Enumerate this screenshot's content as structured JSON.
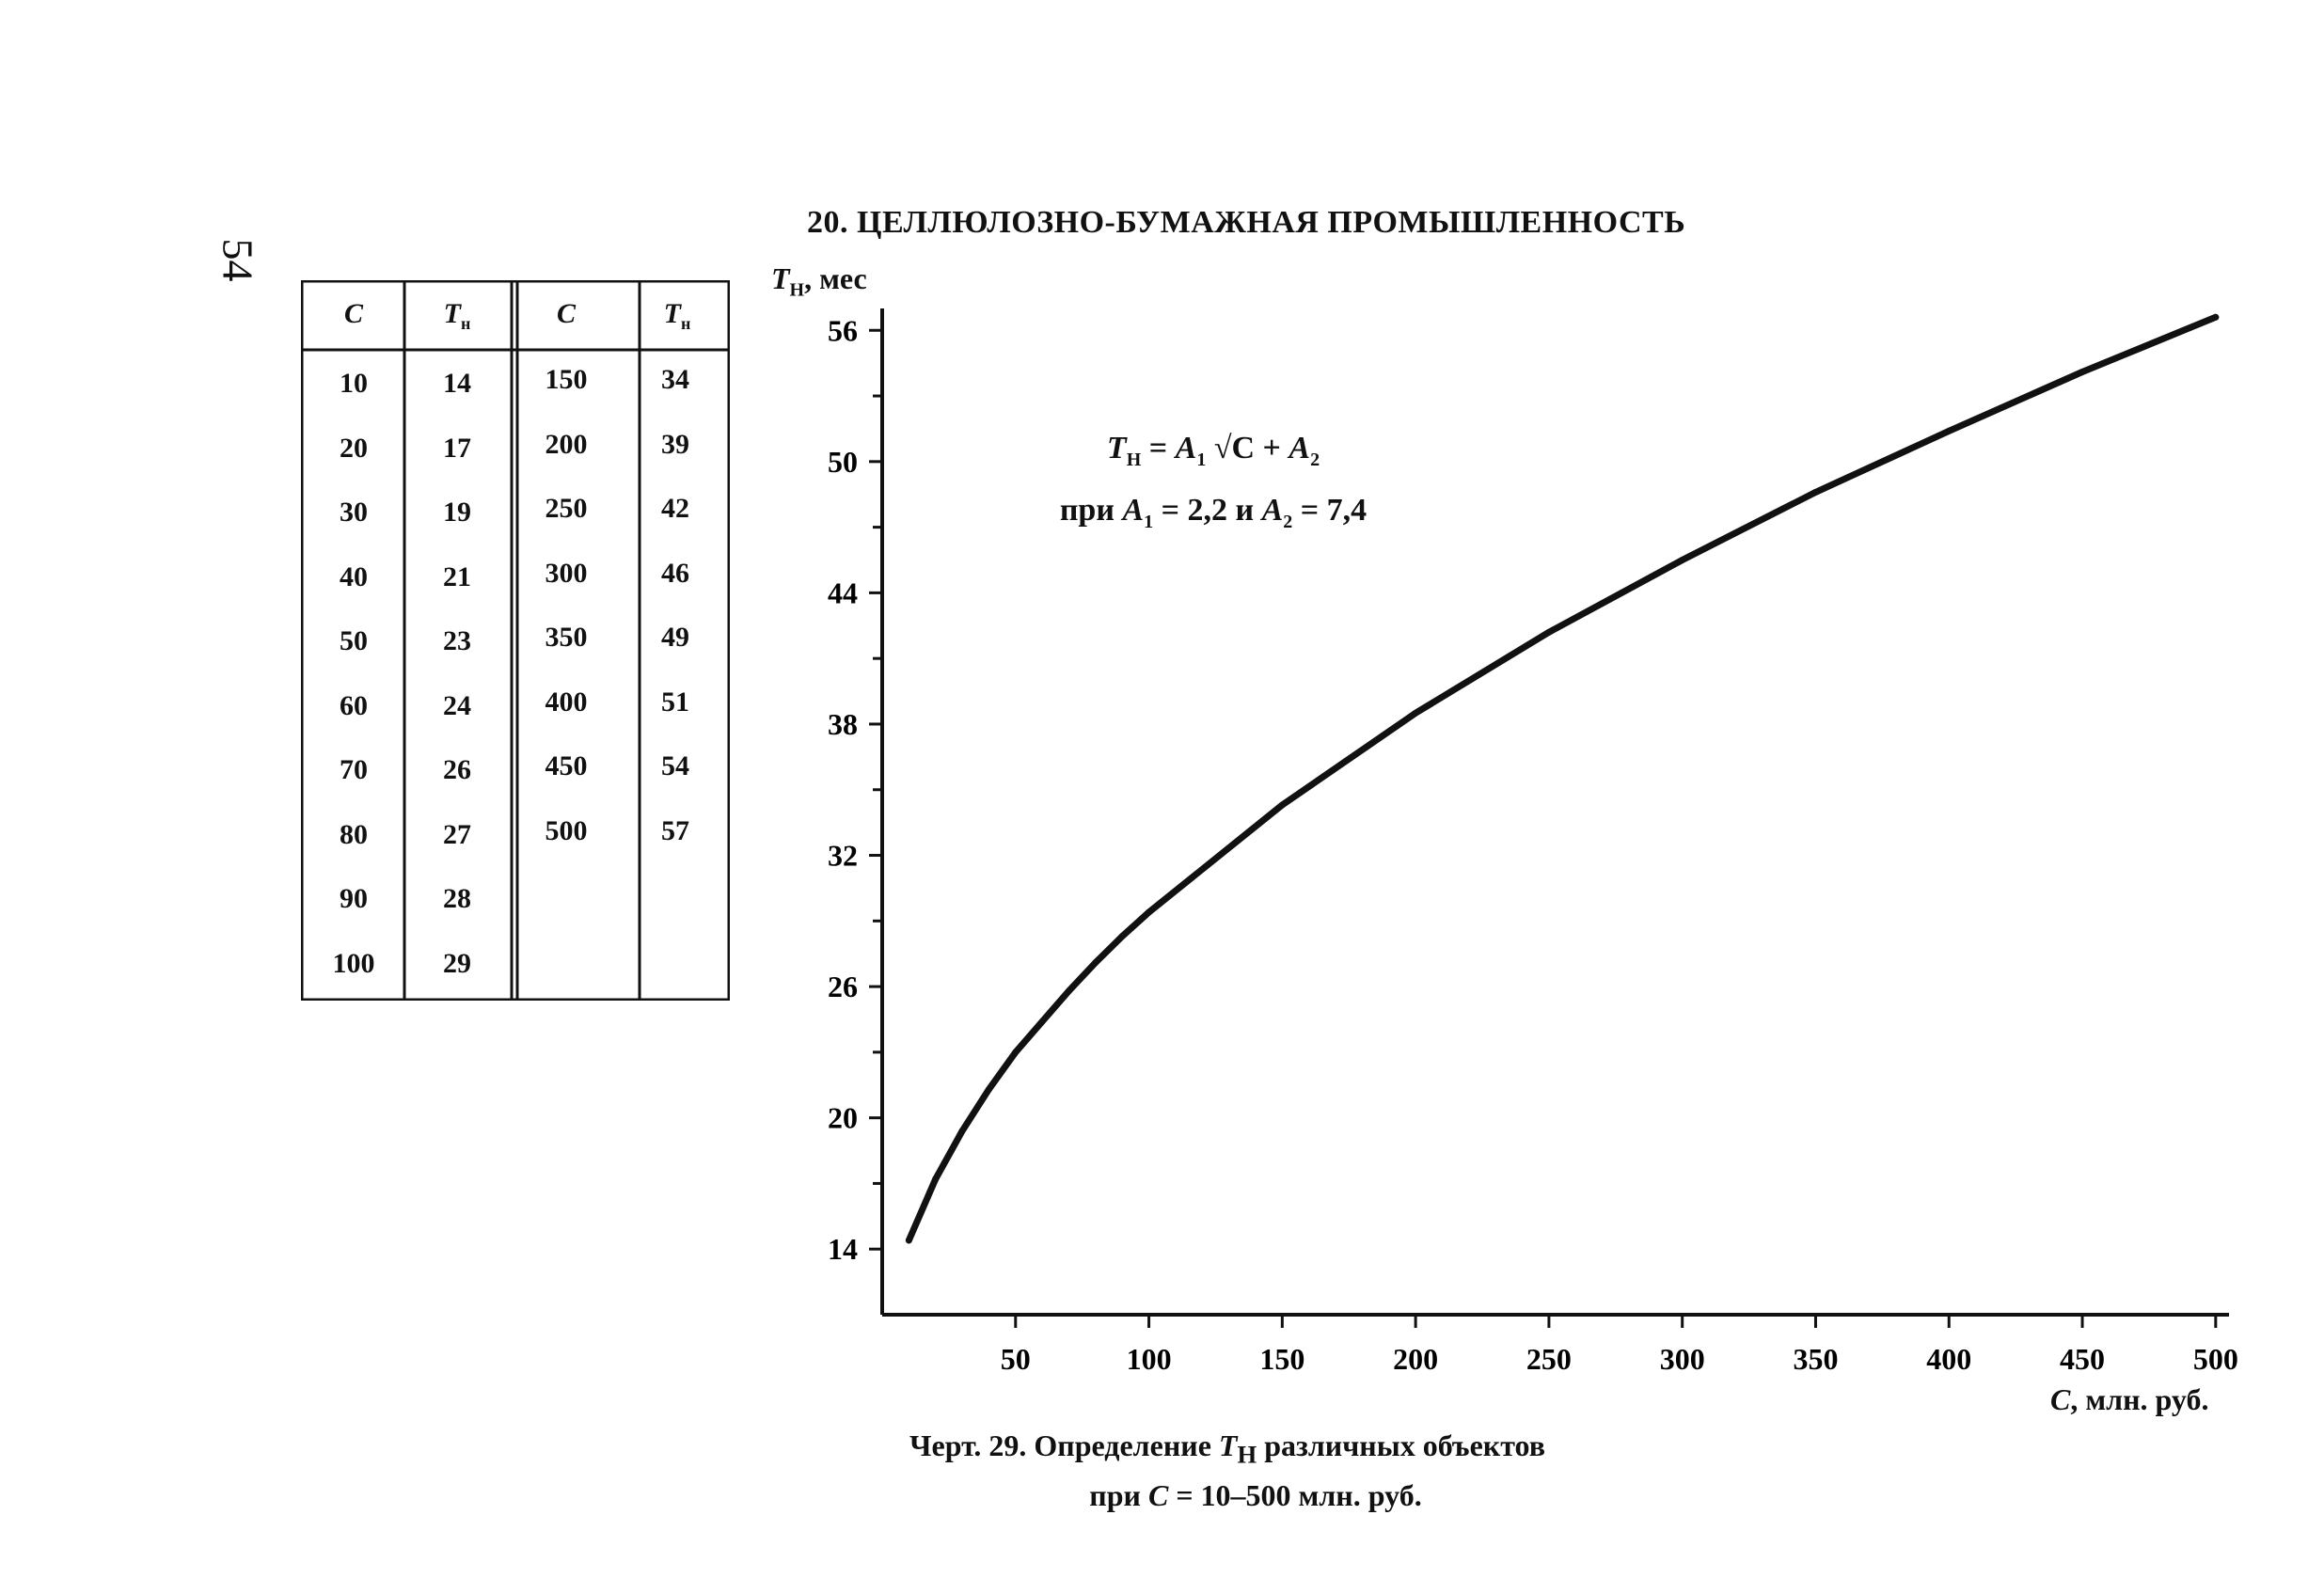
{
  "page": {
    "number": "54",
    "section_title": "20. ЦЕЛЛЮЛОЗНО-БУМАЖНАЯ ПРОМЫШЛЕННОСТЬ"
  },
  "table": {
    "headers": {
      "c": "C",
      "t_main": "T",
      "t_sub": "н"
    },
    "left": {
      "c": [
        "10",
        "20",
        "30",
        "40",
        "50",
        "60",
        "70",
        "80",
        "90",
        "100"
      ],
      "t": [
        "14",
        "17",
        "19",
        "21",
        "23",
        "24",
        "26",
        "27",
        "28",
        "29"
      ]
    },
    "right": {
      "c": [
        "150",
        "200",
        "250",
        "300",
        "350",
        "400",
        "450",
        "500"
      ],
      "t": [
        "34",
        "39",
        "42",
        "46",
        "49",
        "51",
        "54",
        "57"
      ]
    }
  },
  "formula": {
    "line1_t": "T",
    "line1_tsub": "Н",
    "line1_eq": " = ",
    "line1_a1": "A",
    "line1_a1sub": "1",
    "line1_sqrt": " √C",
    "line1_plus": " + ",
    "line1_a2": "A",
    "line1_a2sub": "2",
    "line2_pri": "при ",
    "line2_a1": "A",
    "line2_a1sub": "1",
    "line2_v1": " = 2,2 и ",
    "line2_a2": "A",
    "line2_a2sub": "2",
    "line2_v2": " = 7,4"
  },
  "axis_labels": {
    "y_main": "T",
    "y_sub": "Н",
    "y_unit": ", мес",
    "x_main": "C",
    "x_unit": ", млн. руб."
  },
  "caption": {
    "line1_prefix": "Черт. 29. Определение ",
    "line1_t": "T",
    "line1_tsub": "Н",
    "line1_suffix": " различных объектов",
    "line2_prefix": "при ",
    "line2_c": "C",
    "line2_suffix": " = 10–500 млн. руб."
  },
  "chart_data": {
    "type": "line",
    "x": [
      10,
      20,
      30,
      40,
      50,
      60,
      70,
      80,
      90,
      100,
      150,
      200,
      250,
      300,
      350,
      400,
      450,
      500
    ],
    "series": [
      {
        "values": [
          14.4,
          17.2,
          19.4,
          21.3,
          23.0,
          24.4,
          25.8,
          27.1,
          28.3,
          29.4,
          34.3,
          38.5,
          42.2,
          45.5,
          48.6,
          51.4,
          54.1,
          56.6
        ]
      }
    ],
    "x_ticks": [
      "50",
      "100",
      "150",
      "200",
      "250",
      "300",
      "350",
      "400",
      "450",
      "500"
    ],
    "y_ticks": [
      "14",
      "20",
      "26",
      "32",
      "38",
      "44",
      "50",
      "56"
    ],
    "xlim": [
      0,
      505
    ],
    "ylim": [
      11,
      57
    ],
    "grid": false,
    "colors": {
      "line": "#111111",
      "axis": "#111111"
    }
  }
}
